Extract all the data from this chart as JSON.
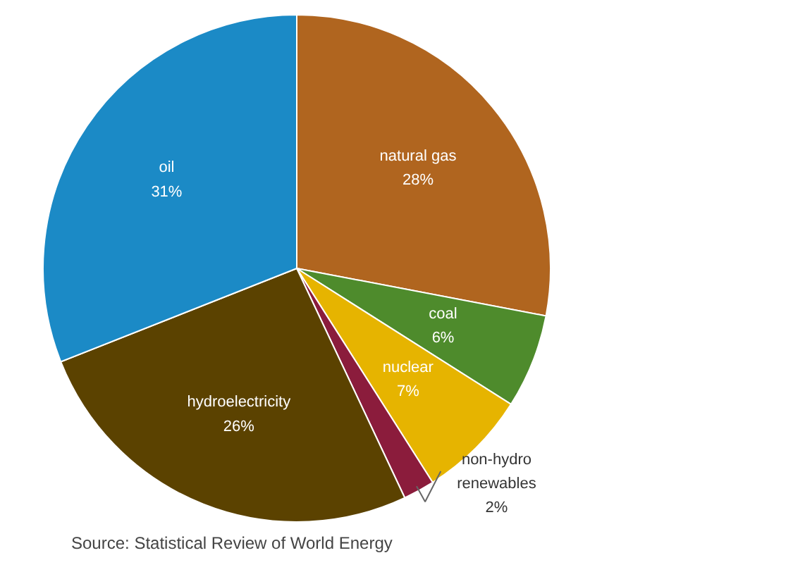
{
  "chart_data": {
    "type": "pie",
    "categories": [
      "natural gas",
      "coal",
      "nuclear",
      "non-hydro renewables",
      "hydroelectricity",
      "oil"
    ],
    "values": [
      28,
      6,
      7,
      2,
      26,
      31
    ],
    "value_labels": [
      "28%",
      "6%",
      "7%",
      "2%",
      "26%",
      "31%"
    ],
    "colors": [
      "#b0651f",
      "#4e8b2c",
      "#e6b400",
      "#8b1c3c",
      "#5b4200",
      "#1b8ac6"
    ],
    "annotations": [
      "Source: Statistical Review of World Energy"
    ]
  }
}
